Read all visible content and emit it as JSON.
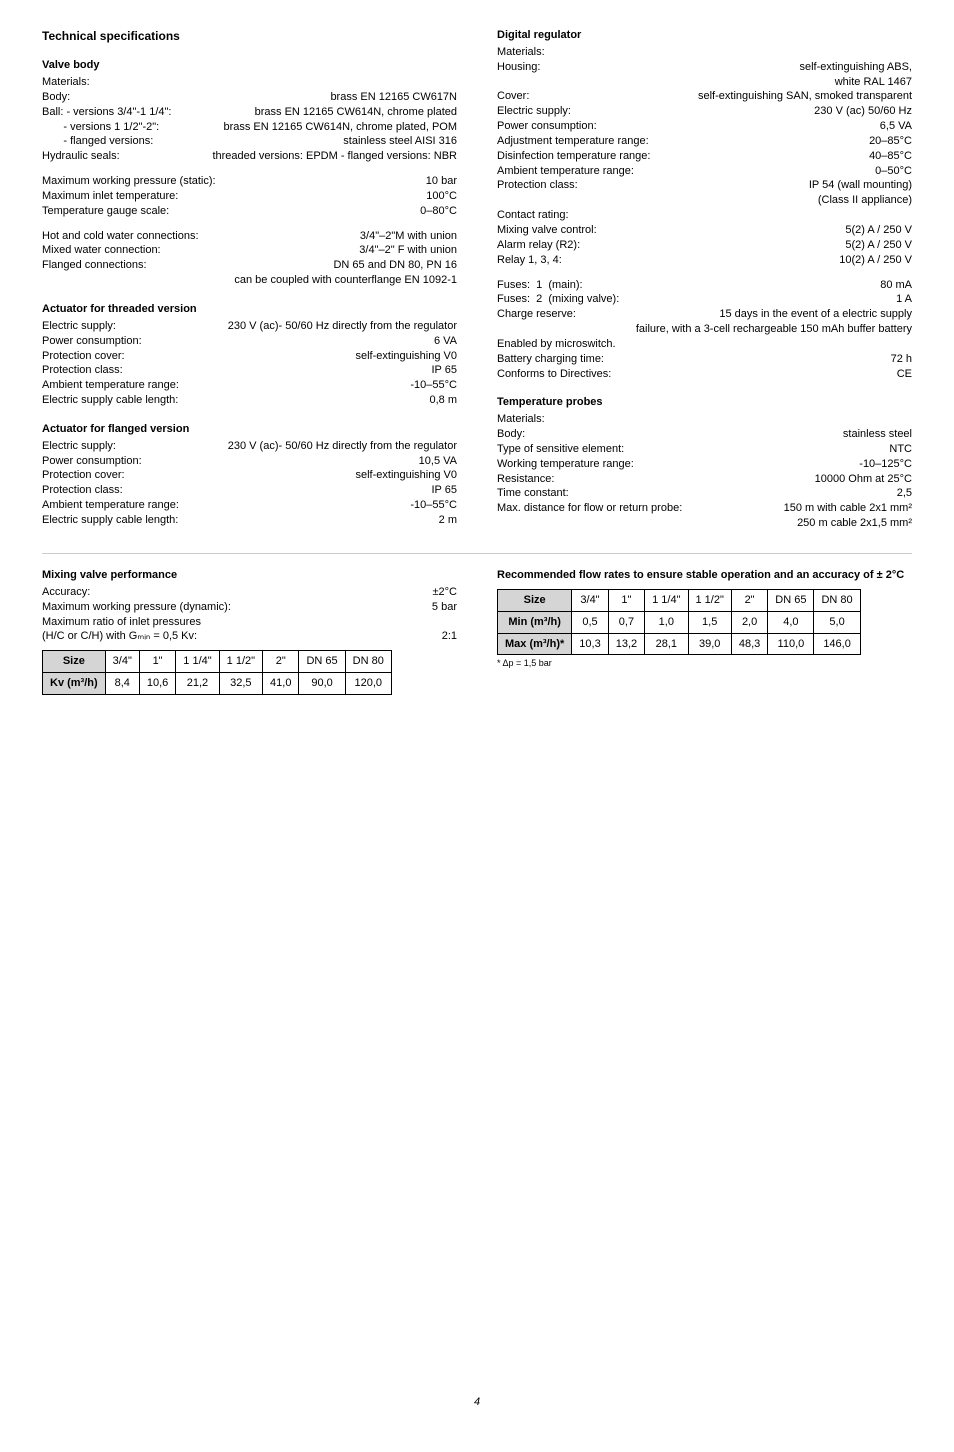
{
  "tech_heading": "Technical specifications",
  "valve_body": {
    "heading": "Valve body",
    "materials_label": "Materials:",
    "body": {
      "k": "Body:",
      "v": "brass EN 12165 CW617N"
    },
    "ball_a": {
      "k": "Ball: - versions 3/4\"-1 1/4\":",
      "v": "brass EN 12165 CW614N, chrome plated"
    },
    "ball_b": {
      "k": "       - versions 1 1/2\"-2\":",
      "v": "brass EN 12165 CW614N, chrome plated, POM"
    },
    "flanged": {
      "k": "       - flanged versions:",
      "v": "stainless steel AISI 316"
    },
    "seals": {
      "k": "Hydraulic seals:",
      "v": "threaded versions: EPDM - flanged versions: NBR"
    },
    "mwp": {
      "k": "Maximum working pressure (static):",
      "v": "10 bar"
    },
    "mit": {
      "k": "Maximum inlet temperature:",
      "v": "100°C"
    },
    "tgs": {
      "k": "Temperature gauge scale:",
      "v": "0–80°C"
    },
    "hcwc": {
      "k": "Hot and cold water connections:",
      "v": "3/4\"–2\"M with union"
    },
    "mwc": {
      "k": "Mixed water connection:",
      "v": "3/4\"–2\" F with union"
    },
    "fc": {
      "k": "Flanged connections:",
      "v": "DN 65 and DN 80, PN 16"
    },
    "fc2": "can be coupled with counterflange EN 1092-1"
  },
  "act_threaded": {
    "heading": "Actuator for threaded version",
    "es": {
      "k": "Electric supply:",
      "v": "230 V (ac)- 50/60 Hz directly from the regulator"
    },
    "pc": {
      "k": "Power consumption:",
      "v": "6 VA"
    },
    "pcov": {
      "k": "Protection cover:",
      "v": "self-extinguishing V0"
    },
    "pcl": {
      "k": "Protection class:",
      "v": "IP 65"
    },
    "atr": {
      "k": "Ambient temperature range:",
      "v": "-10–55°C"
    },
    "escl": {
      "k": "Electric supply cable length:",
      "v": "0,8 m"
    }
  },
  "act_flanged": {
    "heading": "Actuator for flanged version",
    "es": {
      "k": "Electric supply:",
      "v": "230 V (ac)- 50/60 Hz directly from the regulator"
    },
    "pc": {
      "k": "Power consumption:",
      "v": "10,5 VA"
    },
    "pcov": {
      "k": "Protection cover:",
      "v": "self-extinguishing V0"
    },
    "pcl": {
      "k": "Protection class:",
      "v": "IP 65"
    },
    "atr": {
      "k": "Ambient temperature range:",
      "v": "-10–55°C"
    },
    "escl": {
      "k": "Electric supply cable length:",
      "v": "2 m"
    }
  },
  "digital": {
    "heading": "Digital regulator",
    "materials_label": "Materials:",
    "housing": {
      "k": "Housing:",
      "v": "self-extinguishing ABS,"
    },
    "housing2": "white RAL 1467",
    "cover": {
      "k": "Cover:",
      "v": "self-extinguishing SAN, smoked transparent"
    },
    "es": {
      "k": "Electric supply:",
      "v": "230 V (ac) 50/60 Hz"
    },
    "pc": {
      "k": "Power consumption:",
      "v": "6,5 VA"
    },
    "atr": {
      "k": "Adjustment temperature range:",
      "v": "20–85°C"
    },
    "dtr": {
      "k": "Disinfection temperature range:",
      "v": "40–85°C"
    },
    "amtr": {
      "k": "Ambient temperature range:",
      "v": "0–50°C"
    },
    "pcl": {
      "k": "Protection class:",
      "v": "IP 54 (wall mounting)"
    },
    "pcl2": "(Class II appliance)",
    "cr": "Contact rating:",
    "mvc": {
      "k": "Mixing valve control:",
      "v": "5(2) A / 250 V"
    },
    "ar": {
      "k": "Alarm relay (R2):",
      "v": "5(2) A / 250 V"
    },
    "r134": {
      "k": "Relay 1, 3, 4:",
      "v": "10(2) A / 250 V"
    },
    "f1": {
      "k": "Fuses:  1  (main):",
      "v": "80 mA"
    },
    "f2": {
      "k": "Fuses:  2  (mixing valve):",
      "v": "1 A"
    },
    "chr": {
      "k": "Charge reserve:",
      "v": "15 days in the event of a electric supply"
    },
    "chr2": "failure, with a 3-cell rechargeable 150 mAh buffer battery",
    "em": "Enabled by microswitch.",
    "bct": {
      "k": "Battery charging time:",
      "v": "72 h"
    },
    "ctd": {
      "k": "Conforms to Directives:",
      "v": "CE"
    }
  },
  "probes": {
    "heading": "Temperature probes",
    "materials_label": "Materials:",
    "body": {
      "k": "Body:",
      "v": "stainless steel"
    },
    "tse": {
      "k": "Type of sensitive element:",
      "v": "NTC"
    },
    "wtr": {
      "k": "Working temperature range:",
      "v": "-10–125°C"
    },
    "res": {
      "k": "Resistance:",
      "v": "10000 Ohm at 25°C"
    },
    "tc": {
      "k": "Time constant:",
      "v": "2,5"
    },
    "md": {
      "k": "Max. distance for flow or return probe:",
      "v": "150 m with cable 2x1 mm²"
    },
    "md2": "250 m cable 2x1,5 mm²"
  },
  "mixing": {
    "heading": "Mixing valve performance",
    "acc": {
      "k": "Accuracy:",
      "v": "±2°C"
    },
    "mwp": {
      "k": "Maximum working pressure (dynamic):",
      "v": "5 bar"
    },
    "mr": "Maximum ratio of inlet pressures",
    "mr2": {
      "k": "(H/C or C/H) with Gₘᵢₙ = 0,5 Kv:",
      "v": "2:1"
    }
  },
  "kv_table": {
    "headers": [
      "Size",
      "3/4\"",
      "1\"",
      "1 1/4\"",
      "1 1/2\"",
      "2\"",
      "DN 65",
      "DN 80"
    ],
    "row_label": "Kv (m³/h)",
    "row": [
      "8,4",
      "10,6",
      "21,2",
      "32,5",
      "41,0",
      "90,0",
      "120,0"
    ]
  },
  "rec": {
    "heading": "Recommended flow rates to ensure stable operation and an accuracy of ± 2°C"
  },
  "flow_table": {
    "headers": [
      "Size",
      "3/4\"",
      "1\"",
      "1 1/4\"",
      "1 1/2\"",
      "2\"",
      "DN 65",
      "DN 80"
    ],
    "min_label": "Min (m³/h)",
    "min": [
      "0,5",
      "0,7",
      "1,0",
      "1,5",
      "2,0",
      "4,0",
      "5,0"
    ],
    "max_label": "Max (m³/h)*",
    "max": [
      "10,3",
      "13,2",
      "28,1",
      "39,0",
      "48,3",
      "110,0",
      "146,0"
    ],
    "footnote": "* Δp = 1,5 bar"
  },
  "page_number": "4"
}
